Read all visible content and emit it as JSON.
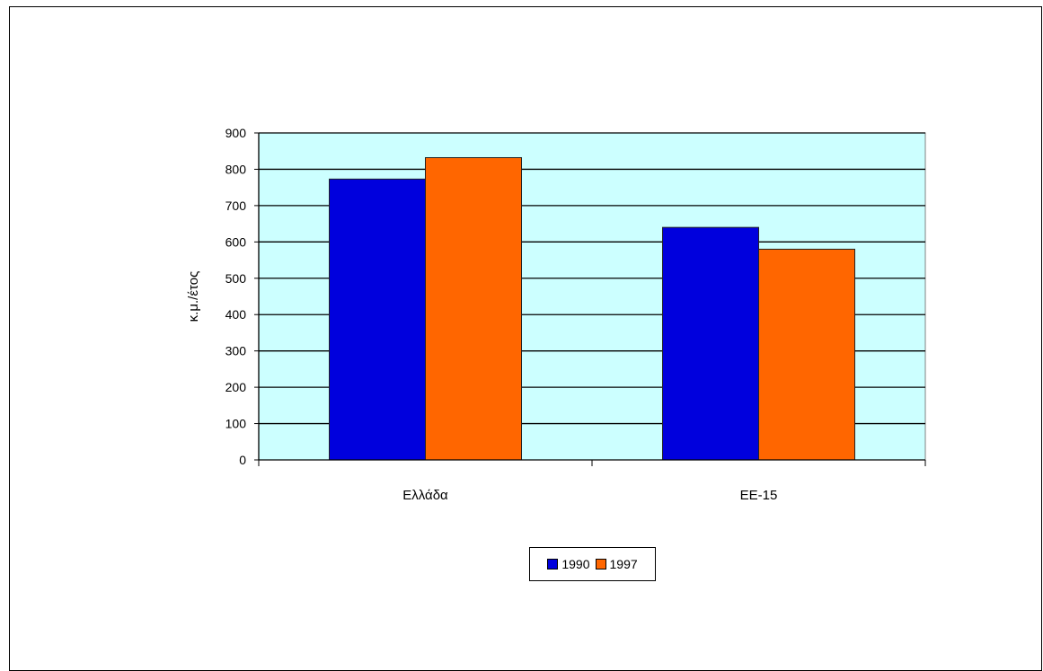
{
  "chart_data": {
    "type": "bar",
    "categories": [
      "Ελλάδα",
      "ΕΕ-15"
    ],
    "series": [
      {
        "name": "1990",
        "values": [
          773,
          640
        ],
        "color": "#0000dd"
      },
      {
        "name": "1997",
        "values": [
          832,
          580
        ],
        "color": "#ff6600"
      }
    ],
    "title": "",
    "xlabel": "",
    "ylabel": "κ.μ./έτος",
    "ylim": [
      0,
      900
    ],
    "yticks": [
      0,
      100,
      200,
      300,
      400,
      500,
      600,
      700,
      800,
      900
    ],
    "plot_background": "#ccffff",
    "grid": true,
    "legend_position": "bottom"
  }
}
